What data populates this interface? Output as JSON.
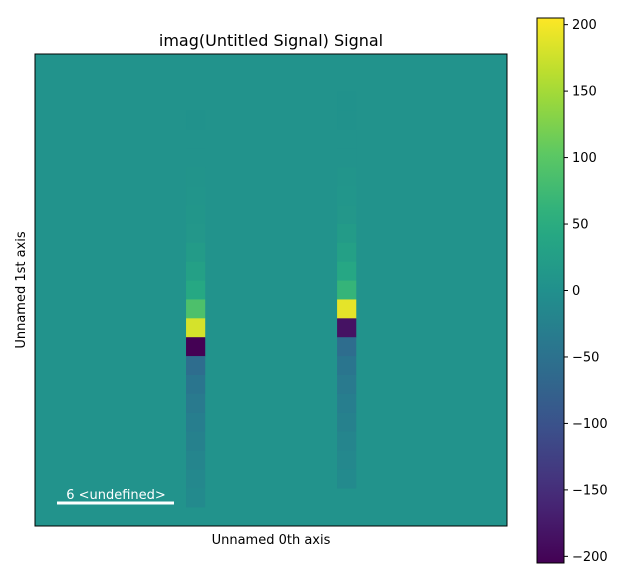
{
  "chart_data": {
    "type": "heatmap",
    "title": "imag(Untitled Signal) Signal",
    "xlabel": "Unnamed 0th axis",
    "ylabel": "Unnamed 1st axis",
    "scalebar_label": "6 <undefined>",
    "colormap": "viridis",
    "vmin": -205,
    "vmax": 205,
    "colorbar_ticks": [
      200,
      150,
      100,
      50,
      0,
      -50,
      -100,
      -150,
      -200
    ],
    "colorbar_tick_labels": [
      "200",
      "150",
      "100",
      "50",
      "0",
      "−50",
      "−100",
      "−150",
      "−200"
    ],
    "grid_size": [
      25,
      25
    ],
    "background_value": 5,
    "columns": [
      {
        "column_index": 8,
        "rows": [
          3,
          4,
          5,
          6,
          7,
          8,
          9,
          10,
          11,
          12,
          13,
          14,
          15,
          16,
          17,
          18,
          19,
          20,
          21,
          22,
          23
        ],
        "values": [
          4,
          5,
          6,
          7,
          9,
          11,
          13,
          20,
          28,
          42,
          88,
          180,
          -205,
          -58,
          -44,
          -36,
          -30,
          -24,
          -18,
          -14,
          -10
        ]
      },
      {
        "column_index": 16,
        "rows": [
          2,
          3,
          4,
          5,
          6,
          7,
          8,
          9,
          10,
          11,
          12,
          13,
          14,
          15,
          16,
          17,
          18,
          19,
          20,
          21,
          22
        ],
        "values": [
          3,
          4,
          5,
          6,
          8,
          10,
          13,
          20,
          28,
          40,
          65,
          190,
          -185,
          -58,
          -44,
          -36,
          -30,
          -24,
          -18,
          -14,
          -10
        ]
      }
    ]
  }
}
